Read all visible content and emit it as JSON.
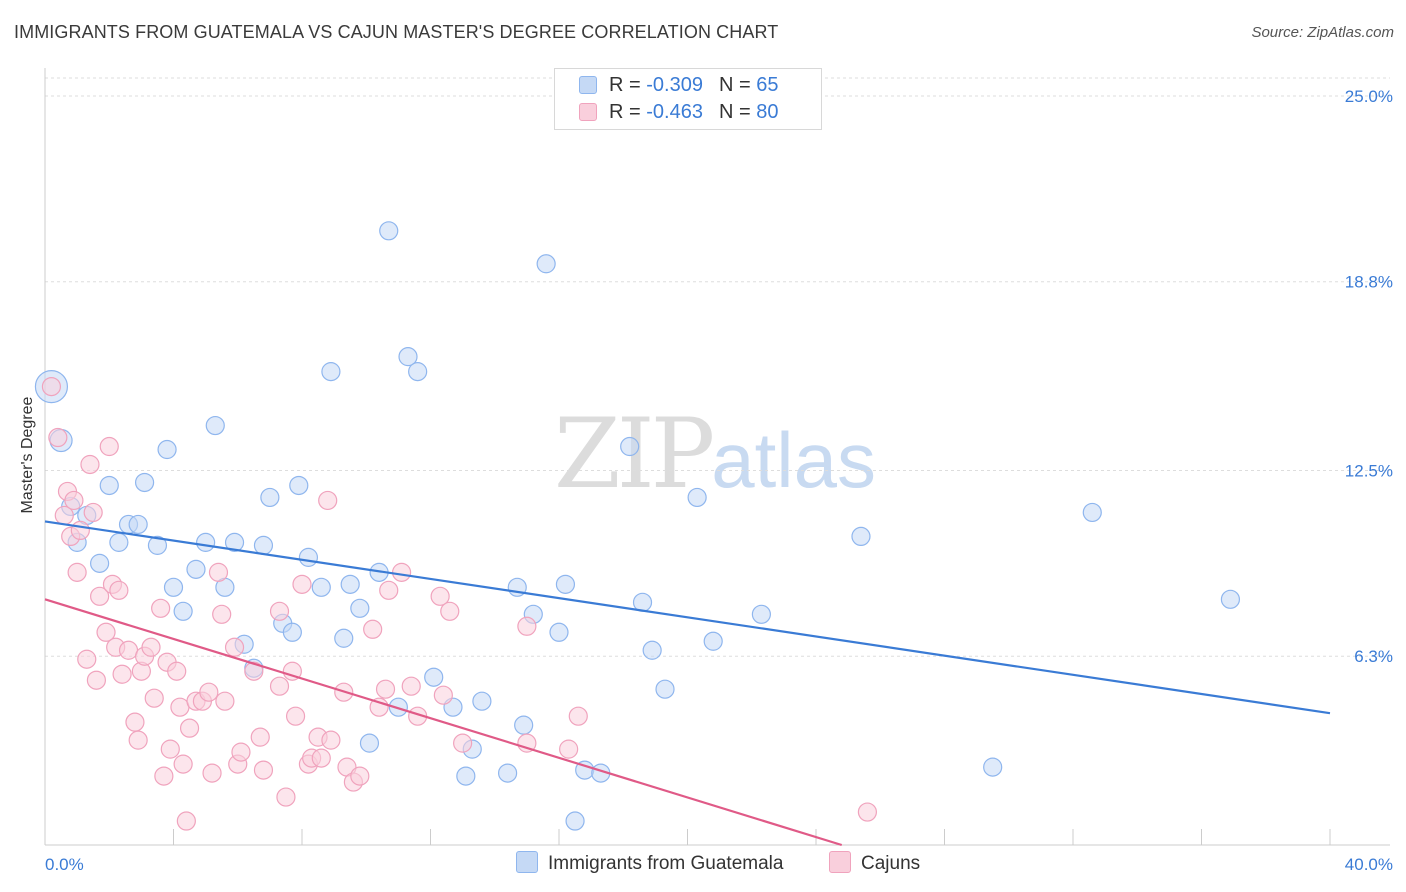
{
  "title": "IMMIGRANTS FROM GUATEMALA VS CAJUN MASTER'S DEGREE CORRELATION CHART",
  "source": "Source: ZipAtlas.com",
  "watermark": {
    "zip": "ZIP",
    "atlas": "atlas"
  },
  "legend": {
    "r_label": "R =",
    "n_label": "N =",
    "rows": [
      {
        "r": "-0.309",
        "n": "65",
        "color": "#8fb6ee",
        "fill": "#c5d9f5"
      },
      {
        "r": "-0.463",
        "n": "80",
        "color": "#f0a3bd",
        "fill": "#f9cfdc"
      }
    ]
  },
  "bottom_legend": [
    {
      "label": "Immigrants from Guatemala",
      "color": "#8fb6ee",
      "fill": "#c5d9f5"
    },
    {
      "label": "Cajuns",
      "color": "#f0a3bd",
      "fill": "#f9cfdc"
    }
  ],
  "chart_data": {
    "type": "scatter",
    "title": "IMMIGRANTS FROM GUATEMALA VS CAJUN MASTER'S DEGREE CORRELATION CHART",
    "xlabel": "",
    "ylabel": "Master's Degree",
    "xlim": [
      0,
      40
    ],
    "ylim": [
      0,
      25.6
    ],
    "x_tick_labels": [
      "0.0%",
      "40.0%"
    ],
    "y_ticks": [
      6.3,
      12.5,
      18.8,
      25.0
    ],
    "y_tick_labels": [
      "6.3%",
      "12.5%",
      "18.8%",
      "25.0%"
    ],
    "grid": "horizontal dashed",
    "series": [
      {
        "name": "Immigrants from Guatemala",
        "color": "#3a7bd5",
        "point_fill": "#c5d9f5",
        "point_stroke": "#8fb6ee",
        "trend": {
          "x0": 0,
          "y0": 10.8,
          "x1": 40,
          "y1": 4.4
        },
        "points": [
          [
            0.2,
            15.3,
            16
          ],
          [
            0.5,
            13.5,
            11
          ],
          [
            0.8,
            11.3,
            9
          ],
          [
            1.0,
            10.1,
            9
          ],
          [
            1.3,
            11.0,
            9
          ],
          [
            1.7,
            9.4,
            9
          ],
          [
            2.0,
            12.0,
            9
          ],
          [
            2.3,
            10.1,
            9
          ],
          [
            2.6,
            10.7,
            9
          ],
          [
            2.9,
            10.7,
            9
          ],
          [
            3.1,
            12.1,
            9
          ],
          [
            3.5,
            10.0,
            9
          ],
          [
            3.8,
            13.2,
            9
          ],
          [
            4.0,
            8.6,
            9
          ],
          [
            4.3,
            7.8,
            9
          ],
          [
            4.7,
            9.2,
            9
          ],
          [
            5.0,
            10.1,
            9
          ],
          [
            5.3,
            14.0,
            9
          ],
          [
            5.6,
            8.6,
            9
          ],
          [
            5.9,
            10.1,
            9
          ],
          [
            6.2,
            6.7,
            9
          ],
          [
            6.5,
            5.9,
            9
          ],
          [
            6.8,
            10.0,
            9
          ],
          [
            7.0,
            11.6,
            9
          ],
          [
            7.4,
            7.4,
            9
          ],
          [
            7.7,
            7.1,
            9
          ],
          [
            7.9,
            12.0,
            9
          ],
          [
            8.2,
            9.6,
            9
          ],
          [
            8.6,
            8.6,
            9
          ],
          [
            8.9,
            15.8,
            9
          ],
          [
            9.3,
            6.9,
            9
          ],
          [
            9.5,
            8.7,
            9
          ],
          [
            9.8,
            7.9,
            9
          ],
          [
            10.1,
            3.4,
            9
          ],
          [
            10.4,
            9.1,
            9
          ],
          [
            10.7,
            20.5,
            9
          ],
          [
            11.0,
            4.6,
            9
          ],
          [
            11.3,
            16.3,
            9
          ],
          [
            11.6,
            15.8,
            9
          ],
          [
            12.1,
            5.6,
            9
          ],
          [
            12.7,
            4.6,
            9
          ],
          [
            13.1,
            2.3,
            9
          ],
          [
            13.3,
            3.2,
            9
          ],
          [
            13.6,
            4.8,
            9
          ],
          [
            14.4,
            2.4,
            9
          ],
          [
            14.7,
            8.6,
            9
          ],
          [
            14.9,
            4.0,
            9
          ],
          [
            15.2,
            7.7,
            9
          ],
          [
            15.6,
            19.4,
            9
          ],
          [
            16.0,
            7.1,
            9
          ],
          [
            16.2,
            8.7,
            9
          ],
          [
            16.5,
            0.8,
            9
          ],
          [
            16.8,
            2.5,
            9
          ],
          [
            17.3,
            2.4,
            9
          ],
          [
            18.2,
            13.3,
            9
          ],
          [
            18.6,
            8.1,
            9
          ],
          [
            18.9,
            6.5,
            9
          ],
          [
            19.3,
            5.2,
            9
          ],
          [
            20.3,
            11.6,
            9
          ],
          [
            20.8,
            6.8,
            9
          ],
          [
            22.3,
            7.7,
            9
          ],
          [
            25.4,
            10.3,
            9
          ],
          [
            29.5,
            2.6,
            9
          ],
          [
            32.6,
            11.1,
            9
          ],
          [
            36.9,
            8.2,
            9
          ]
        ]
      },
      {
        "name": "Cajuns",
        "color": "#e05a87",
        "point_fill": "#f9cfdc",
        "point_stroke": "#f0a3bd",
        "trend": {
          "x0": 0,
          "y0": 8.2,
          "x1": 24.8,
          "y1": 0
        },
        "points": [
          [
            0.2,
            15.3,
            9
          ],
          [
            0.4,
            13.6,
            9
          ],
          [
            0.6,
            11.0,
            9
          ],
          [
            0.7,
            11.8,
            9
          ],
          [
            0.8,
            10.3,
            9
          ],
          [
            0.9,
            11.5,
            9
          ],
          [
            1.0,
            9.1,
            9
          ],
          [
            1.1,
            10.5,
            9
          ],
          [
            1.3,
            6.2,
            9
          ],
          [
            1.4,
            12.7,
            9
          ],
          [
            1.5,
            11.1,
            9
          ],
          [
            1.6,
            5.5,
            9
          ],
          [
            1.7,
            8.3,
            9
          ],
          [
            1.9,
            7.1,
            9
          ],
          [
            2.0,
            13.3,
            9
          ],
          [
            2.1,
            8.7,
            9
          ],
          [
            2.2,
            6.6,
            9
          ],
          [
            2.3,
            8.5,
            9
          ],
          [
            2.4,
            5.7,
            9
          ],
          [
            2.6,
            6.5,
            9
          ],
          [
            2.8,
            4.1,
            9
          ],
          [
            2.9,
            3.5,
            9
          ],
          [
            3.0,
            5.8,
            9
          ],
          [
            3.1,
            6.3,
            9
          ],
          [
            3.3,
            6.6,
            9
          ],
          [
            3.4,
            4.9,
            9
          ],
          [
            3.6,
            7.9,
            9
          ],
          [
            3.7,
            2.3,
            9
          ],
          [
            3.8,
            6.1,
            9
          ],
          [
            3.9,
            3.2,
            9
          ],
          [
            4.1,
            5.8,
            9
          ],
          [
            4.2,
            4.6,
            9
          ],
          [
            4.3,
            2.7,
            9
          ],
          [
            4.4,
            0.8,
            9
          ],
          [
            4.5,
            3.9,
            9
          ],
          [
            4.7,
            4.8,
            9
          ],
          [
            4.9,
            4.8,
            9
          ],
          [
            5.1,
            5.1,
            9
          ],
          [
            5.2,
            2.4,
            9
          ],
          [
            5.4,
            9.1,
            9
          ],
          [
            5.5,
            7.7,
            9
          ],
          [
            5.6,
            4.8,
            9
          ],
          [
            5.9,
            6.6,
            9
          ],
          [
            6.0,
            2.7,
            9
          ],
          [
            6.1,
            3.1,
            9
          ],
          [
            6.5,
            5.8,
            9
          ],
          [
            6.7,
            3.6,
            9
          ],
          [
            6.8,
            2.5,
            9
          ],
          [
            7.3,
            5.3,
            9
          ],
          [
            7.3,
            7.8,
            9
          ],
          [
            7.5,
            1.6,
            9
          ],
          [
            7.7,
            5.8,
            9
          ],
          [
            7.8,
            4.3,
            9
          ],
          [
            8.0,
            8.7,
            9
          ],
          [
            8.2,
            2.7,
            9
          ],
          [
            8.3,
            2.9,
            9
          ],
          [
            8.5,
            3.6,
            9
          ],
          [
            8.6,
            2.9,
            9
          ],
          [
            8.8,
            11.5,
            9
          ],
          [
            8.9,
            3.5,
            9
          ],
          [
            9.3,
            5.1,
            9
          ],
          [
            9.4,
            2.6,
            9
          ],
          [
            9.6,
            2.1,
            9
          ],
          [
            9.8,
            2.3,
            9
          ],
          [
            10.2,
            7.2,
            9
          ],
          [
            10.4,
            4.6,
            9
          ],
          [
            10.6,
            5.2,
            9
          ],
          [
            10.7,
            8.5,
            9
          ],
          [
            11.1,
            9.1,
            9
          ],
          [
            11.4,
            5.3,
            9
          ],
          [
            11.6,
            4.3,
            9
          ],
          [
            12.3,
            8.3,
            9
          ],
          [
            12.4,
            5.0,
            9
          ],
          [
            12.6,
            7.8,
            9
          ],
          [
            13.0,
            3.4,
            9
          ],
          [
            15.0,
            7.3,
            9
          ],
          [
            15.0,
            3.4,
            9
          ],
          [
            16.3,
            3.2,
            9
          ],
          [
            16.6,
            4.3,
            9
          ],
          [
            25.6,
            1.1,
            9
          ]
        ]
      }
    ]
  }
}
